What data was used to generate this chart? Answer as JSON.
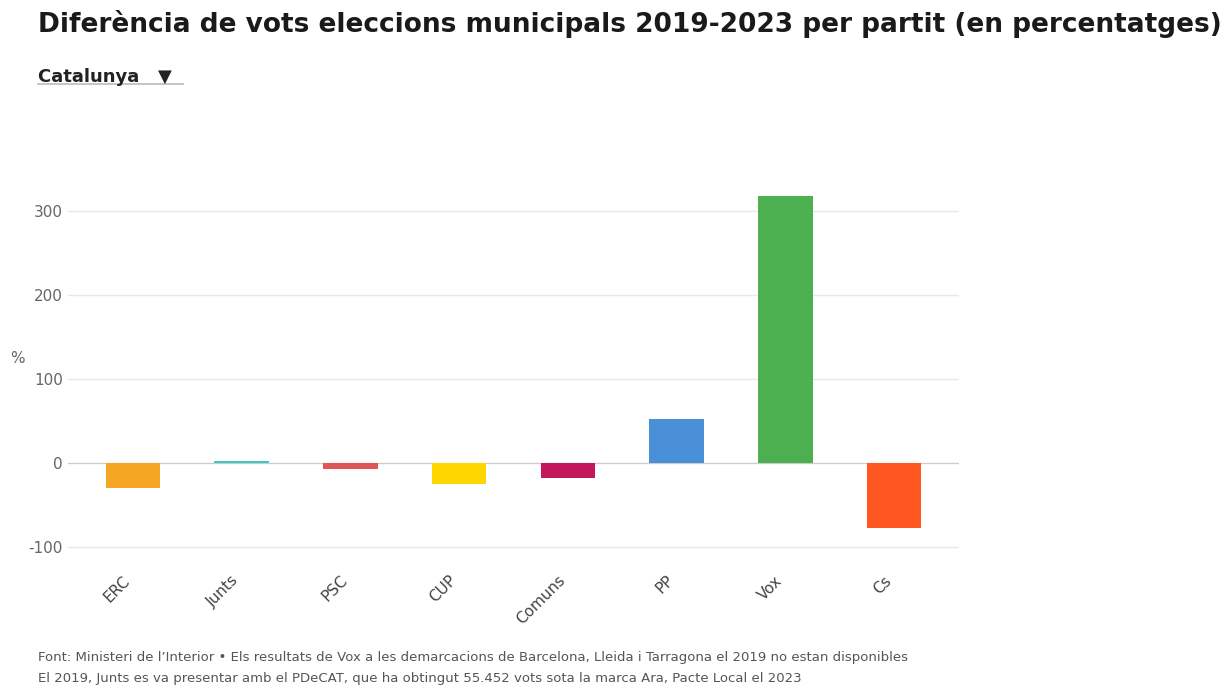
{
  "title": "Diferència de vots eleccions municipals 2019-2023 per partit (en percentatges)",
  "subtitle": "Catalunya",
  "subtitle_arrow": "▼",
  "categories": [
    "ERC",
    "Junts",
    "PSC",
    "CUP",
    "Comuns",
    "PP",
    "Vox",
    "Cs"
  ],
  "values": [
    -30,
    2,
    -8,
    -25,
    -18,
    52,
    317,
    -78
  ],
  "colors": [
    "#F5A623",
    "#3DC8C8",
    "#E05555",
    "#FFD700",
    "#C2185B",
    "#4A90D9",
    "#4CAF50",
    "#FF5722"
  ],
  "ylabel": "%",
  "ylim": [
    -125,
    355
  ],
  "yticks": [
    -100,
    0,
    100,
    200,
    300
  ],
  "footnote_line1": "Font: Ministeri de l’Interior • Els resultats de Vox a les demarcacions de Barcelona, Lleida i Tarragona el 2019 no estan disponibles",
  "footnote_line2": "El 2019, Junts es va presentar amb el PDeCAT, que ha obtingut 55.452 vots sota la marca Ara, Pacte Local el 2023",
  "background_color": "#ffffff",
  "grid_color": "#e8e8e8",
  "title_fontsize": 19,
  "subtitle_fontsize": 13,
  "tick_fontsize": 11,
  "footnote_fontsize": 9.5,
  "bar_width": 0.5
}
